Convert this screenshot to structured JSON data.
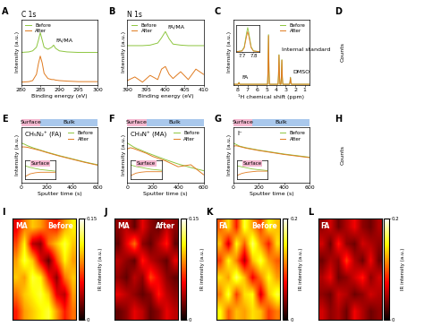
{
  "chart_data": [
    {
      "panel": "A",
      "type": "line",
      "title": "C 1s",
      "xlabel": "Binding energy (eV)",
      "ylabel": "Intensity (a.u.)",
      "x": [
        280,
        282,
        283,
        284,
        284.5,
        285,
        285.5,
        286,
        287,
        288,
        288.5,
        289,
        290,
        292,
        295,
        298,
        300
      ],
      "series": [
        {
          "name": "Before",
          "color": "#8dc63f",
          "values": [
            0.62,
            0.63,
            0.65,
            0.72,
            0.85,
            1.0,
            0.86,
            0.72,
            0.68,
            0.72,
            0.76,
            0.7,
            0.65,
            0.63,
            0.62,
            0.62,
            0.62
          ]
        },
        {
          "name": "After",
          "color": "#e07b20",
          "values": [
            0.05,
            0.06,
            0.08,
            0.2,
            0.4,
            0.55,
            0.42,
            0.22,
            0.12,
            0.1,
            0.1,
            0.09,
            0.08,
            0.07,
            0.06,
            0.06,
            0.06
          ]
        }
      ],
      "xlim": [
        280,
        300
      ],
      "xticks": [
        280,
        285,
        290,
        295,
        300
      ],
      "ylim": [
        0,
        1.25
      ],
      "tick_labels": "x",
      "legend": "upper left",
      "annotations": [
        {
          "text": "FA/MA",
          "x": 288.5
        }
      ]
    },
    {
      "panel": "B",
      "type": "line",
      "title": "N 1s",
      "xlabel": "Binding energy (eV)",
      "ylabel": "Intensity (a.u.)",
      "x": [
        390,
        392,
        394,
        396,
        398,
        399,
        400,
        401,
        402,
        404,
        406,
        408,
        410
      ],
      "series": [
        {
          "name": "Before",
          "color": "#8dc63f",
          "values": [
            0.75,
            0.75,
            0.75,
            0.76,
            0.8,
            0.9,
            1.02,
            0.88,
            0.78,
            0.76,
            0.75,
            0.75,
            0.75
          ]
        },
        {
          "name": "After",
          "color": "#e07b20",
          "values": [
            0.08,
            0.15,
            0.05,
            0.18,
            0.1,
            0.3,
            0.35,
            0.2,
            0.12,
            0.25,
            0.1,
            0.3,
            0.2
          ]
        }
      ],
      "xlim": [
        390,
        410
      ],
      "xticks": [
        390,
        395,
        400,
        405,
        410
      ],
      "ylim": [
        0,
        1.25
      ],
      "tick_labels": "x",
      "legend": "upper left",
      "annotations": [
        {
          "text": "FA/MA",
          "x": 400
        }
      ]
    },
    {
      "panel": "C",
      "type": "line",
      "xlabel": "¹H chemical shift (ppm)",
      "ylabel": "Intensity (a.u.)",
      "x": [
        0.5,
        2.4,
        2.45,
        2.5,
        2.55,
        2.6,
        3.3,
        3.35,
        3.4,
        3.45,
        3.5,
        3.6,
        3.65,
        3.7,
        3.75,
        3.8,
        4.7,
        4.75,
        4.8,
        4.85,
        4.9,
        7.8,
        7.85,
        7.9,
        7.95,
        8.0,
        8.5
      ],
      "series": [
        {
          "name": "Before",
          "color": "#8dc63f",
          "values": [
            0.01,
            0.01,
            0.05,
            0.15,
            0.05,
            0.01,
            0.01,
            0.15,
            0.5,
            0.15,
            0.01,
            0.01,
            0.2,
            0.6,
            0.2,
            0.01,
            0.01,
            0.3,
            1.0,
            0.3,
            0.01,
            0.01,
            0.02,
            0.05,
            0.02,
            0.01,
            0.01
          ]
        },
        {
          "name": "After",
          "color": "#e07b20",
          "values": [
            0.01,
            0.01,
            0.05,
            0.14,
            0.05,
            0.01,
            0.01,
            0.15,
            0.49,
            0.15,
            0.01,
            0.01,
            0.2,
            0.59,
            0.2,
            0.01,
            0.01,
            0.3,
            0.98,
            0.3,
            0.01,
            0.01,
            0.02,
            0.04,
            0.02,
            0.01,
            0.01
          ]
        }
      ],
      "xlim": [
        8.5,
        0.5
      ],
      "xticks": [
        8,
        7,
        6,
        5,
        4,
        3,
        2,
        1
      ],
      "ylim": [
        0,
        1.3
      ],
      "tick_labels": "x",
      "legend": "upper right",
      "annotations": [
        {
          "text": "Internal standard",
          "x": 3.7
        },
        {
          "text": "DMSO",
          "x": 2.5
        },
        {
          "text": "FA",
          "x": 7.9
        }
      ],
      "inset": {
        "x": [
          7.65,
          7.7,
          7.72,
          7.74,
          7.75,
          7.76,
          7.78,
          7.8,
          7.85
        ],
        "series": [
          {
            "name": "Before",
            "color": "#8dc63f",
            "values": [
              0.02,
              0.05,
              0.2,
              0.7,
              0.9,
              0.7,
              0.2,
              0.05,
              0.02
            ]
          },
          {
            "name": "After",
            "color": "#e07b20",
            "values": [
              0.02,
              0.04,
              0.16,
              0.58,
              0.75,
              0.58,
              0.16,
              0.04,
              0.02
            ]
          }
        ],
        "xlim": [
          7.65,
          7.85
        ],
        "xticks": [
          7.7,
          7.8
        ],
        "ylim": [
          0,
          1.0
        ]
      }
    },
    {
      "panel": "D",
      "type": "3d",
      "zlabel": "Counts"
    },
    {
      "panel": "E",
      "type": "line",
      "subtitle": "CH₅N₂⁺ (FA)",
      "xlabel": "Sputter time (s)",
      "ylabel": "Intensity (a.u.)",
      "regions": [
        "Surface",
        "Bulk"
      ],
      "x": [
        0,
        25,
        50,
        75,
        100,
        150,
        200,
        300,
        400,
        500,
        600
      ],
      "series": [
        {
          "name": "Before",
          "color": "#8dc63f",
          "values": [
            1.0,
            0.97,
            0.93,
            0.9,
            0.87,
            0.82,
            0.77,
            0.68,
            0.6,
            0.52,
            0.45
          ]
        },
        {
          "name": "After",
          "color": "#e07b20",
          "values": [
            0.9,
            0.9,
            0.89,
            0.87,
            0.85,
            0.81,
            0.76,
            0.67,
            0.59,
            0.51,
            0.44
          ]
        }
      ],
      "xlim": [
        0,
        600
      ],
      "xticks": [
        0,
        200,
        400,
        600
      ],
      "ylim": [
        0,
        1.4
      ],
      "tick_labels": "x",
      "legend": "upper right",
      "inset": {
        "title": "Surface",
        "x": [
          0,
          10,
          20,
          30,
          40,
          50,
          60
        ],
        "series": [
          {
            "name": "Before",
            "color": "#8dc63f",
            "values": [
              1.0,
              0.97,
              0.95,
              0.93,
              0.92,
              0.91,
              0.9
            ]
          },
          {
            "name": "After",
            "color": "#e07b20",
            "values": [
              0.8,
              0.85,
              0.87,
              0.88,
              0.88,
              0.88,
              0.88
            ]
          }
        ],
        "xlim": [
          0,
          60
        ],
        "ylim": [
          0.75,
          1.1
        ],
        "tick_labels": false
      }
    },
    {
      "panel": "F",
      "type": "line",
      "subtitle": "CH₃N⁺ (MA)",
      "xlabel": "Sputter time (s)",
      "ylabel": "Intensity (a.u.)",
      "regions": [
        "Surface",
        "Bulk"
      ],
      "x": [
        0,
        25,
        50,
        75,
        100,
        150,
        200,
        300,
        400,
        500,
        600
      ],
      "series": [
        {
          "name": "Before",
          "color": "#8dc63f",
          "values": [
            1.0,
            0.95,
            0.9,
            0.86,
            0.83,
            0.76,
            0.7,
            0.58,
            0.47,
            0.38,
            0.3
          ]
        },
        {
          "name": "After",
          "color": "#e07b20",
          "values": [
            0.85,
            0.88,
            0.86,
            0.83,
            0.8,
            0.74,
            0.66,
            0.55,
            0.4,
            0.45,
            0.2
          ]
        }
      ],
      "xlim": [
        0,
        600
      ],
      "xticks": [
        0,
        200,
        400,
        600
      ],
      "ylim": [
        0,
        1.4
      ],
      "tick_labels": "x",
      "legend": "upper right",
      "inset": {
        "title": "Surface",
        "x": [
          0,
          10,
          20,
          30,
          40,
          50,
          60
        ],
        "series": [
          {
            "name": "Before",
            "color": "#8dc63f",
            "values": [
              1.0,
              0.97,
              0.95,
              0.93,
              0.91,
              0.9,
              0.89
            ]
          },
          {
            "name": "After",
            "color": "#e07b20",
            "values": [
              0.78,
              0.83,
              0.85,
              0.86,
              0.86,
              0.86,
              0.86
            ]
          }
        ],
        "xlim": [
          0,
          60
        ],
        "ylim": [
          0.7,
          1.1
        ],
        "tick_labels": false
      }
    },
    {
      "panel": "G",
      "type": "line",
      "subtitle": "I⁻",
      "xlabel": "Sputter time (s)",
      "ylabel": "Intensity (a.u.)",
      "regions": [
        "Surface",
        "Bulk"
      ],
      "x": [
        0,
        25,
        50,
        75,
        100,
        150,
        200,
        300,
        400,
        500,
        600
      ],
      "series": [
        {
          "name": "Before",
          "color": "#8dc63f",
          "values": [
            1.0,
            0.96,
            0.92,
            0.9,
            0.88,
            0.85,
            0.82,
            0.77,
            0.72,
            0.68,
            0.64
          ]
        },
        {
          "name": "After",
          "color": "#e07b20",
          "values": [
            0.92,
            0.93,
            0.91,
            0.89,
            0.87,
            0.84,
            0.81,
            0.76,
            0.71,
            0.67,
            0.63
          ]
        }
      ],
      "xlim": [
        0,
        600
      ],
      "xticks": [
        0,
        200,
        400,
        600
      ],
      "ylim": [
        0,
        1.4
      ],
      "tick_labels": "x",
      "legend": "upper right",
      "inset": {
        "title": "Surface",
        "x": [
          0,
          10,
          20,
          30,
          40,
          50,
          60
        ],
        "series": [
          {
            "name": "Before",
            "color": "#8dc63f",
            "values": [
              1.0,
              0.98,
              0.96,
              0.94,
              0.93,
              0.92,
              0.91
            ]
          },
          {
            "name": "After",
            "color": "#e07b20",
            "values": [
              0.82,
              0.86,
              0.88,
              0.89,
              0.9,
              0.9,
              0.9
            ]
          }
        ],
        "xlim": [
          0,
          60
        ],
        "ylim": [
          0.75,
          1.1
        ],
        "tick_labels": false
      }
    },
    {
      "panel": "H",
      "type": "3d",
      "zlabel": "Counts"
    },
    {
      "panel": "I",
      "type": "heatmap",
      "title": "MA",
      "subtitle": "Before",
      "tick_labels": false,
      "cells": [
        [
          0.05,
          0.08,
          0.1,
          0.09,
          0.07,
          0.06,
          0.09,
          0.11
        ],
        [
          0.07,
          0.11,
          0.04,
          0.03,
          0.08,
          0.1,
          0.12,
          0.1
        ],
        [
          0.09,
          0.12,
          0.1,
          0.05,
          0.02,
          0.07,
          0.11,
          0.09
        ],
        [
          0.1,
          0.09,
          0.12,
          0.11,
          0.06,
          0.03,
          0.08,
          0.1
        ],
        [
          0.08,
          0.1,
          0.11,
          0.12,
          0.1,
          0.05,
          0.04,
          0.09
        ],
        [
          0.06,
          0.09,
          0.1,
          0.11,
          0.12,
          0.09,
          0.06,
          0.08
        ]
      ],
      "colorbar_range": [
        0,
        0.15
      ],
      "colorbar_ticks": [
        0,
        0.15
      ],
      "colorbar_label": "IR intensity (a.u.)"
    },
    {
      "panel": "J",
      "type": "heatmap",
      "title": "MA",
      "subtitle": "After",
      "tick_labels": false,
      "cells": [
        [
          0.03,
          0.04,
          0.02,
          0.05,
          0.03,
          0.02,
          0.04,
          0.03
        ],
        [
          0.02,
          0.05,
          0.08,
          0.03,
          0.02,
          0.04,
          0.06,
          0.02
        ],
        [
          0.04,
          0.03,
          0.02,
          0.06,
          0.04,
          0.03,
          0.02,
          0.05
        ],
        [
          0.03,
          0.02,
          0.04,
          0.03,
          0.07,
          0.05,
          0.03,
          0.02
        ],
        [
          0.05,
          0.04,
          0.03,
          0.02,
          0.03,
          0.06,
          0.04,
          0.03
        ],
        [
          0.02,
          0.03,
          0.05,
          0.04,
          0.02,
          0.03,
          0.05,
          0.04
        ]
      ],
      "colorbar_range": [
        0,
        0.15
      ],
      "colorbar_ticks": [
        0,
        0.15
      ],
      "colorbar_label": "IR intensity (a.u.)"
    },
    {
      "panel": "K",
      "type": "heatmap",
      "title": "FA",
      "subtitle": "Before",
      "tick_labels": false,
      "cells": [
        [
          0.1,
          0.14,
          0.08,
          0.16,
          0.12,
          0.09,
          0.15,
          0.13
        ],
        [
          0.13,
          0.06,
          0.15,
          0.1,
          0.17,
          0.12,
          0.08,
          0.14
        ],
        [
          0.09,
          0.15,
          0.11,
          0.05,
          0.13,
          0.16,
          0.12,
          0.1
        ],
        [
          0.14,
          0.12,
          0.17,
          0.13,
          0.07,
          0.11,
          0.15,
          0.12
        ],
        [
          0.11,
          0.16,
          0.09,
          0.14,
          0.15,
          0.06,
          0.13,
          0.16
        ],
        [
          0.15,
          0.1,
          0.13,
          0.12,
          0.14,
          0.13,
          0.09,
          0.11
        ]
      ],
      "colorbar_range": [
        0,
        0.2
      ],
      "colorbar_ticks": [
        0,
        0.2
      ],
      "colorbar_label": "IR intensity (a.u.)"
    },
    {
      "panel": "L",
      "type": "heatmap",
      "title": "FA",
      "tick_labels": false,
      "cells": [
        [
          0.04,
          0.06,
          0.03,
          0.05,
          0.07,
          0.04,
          0.03,
          0.05
        ],
        [
          0.06,
          0.03,
          0.08,
          0.04,
          0.03,
          0.06,
          0.05,
          0.04
        ],
        [
          0.03,
          0.05,
          0.04,
          0.09,
          0.05,
          0.03,
          0.07,
          0.03
        ],
        [
          0.05,
          0.07,
          0.03,
          0.04,
          0.06,
          0.08,
          0.04,
          0.06
        ],
        [
          0.04,
          0.03,
          0.06,
          0.05,
          0.03,
          0.04,
          0.06,
          0.05
        ],
        [
          0.06,
          0.04,
          0.05,
          0.03,
          0.07,
          0.05,
          0.03,
          0.04
        ]
      ],
      "colorbar_range": [
        0,
        0.2
      ],
      "colorbar_ticks": [
        0,
        0.2
      ],
      "colorbar_label": "IR intensity (a.u.)"
    }
  ]
}
